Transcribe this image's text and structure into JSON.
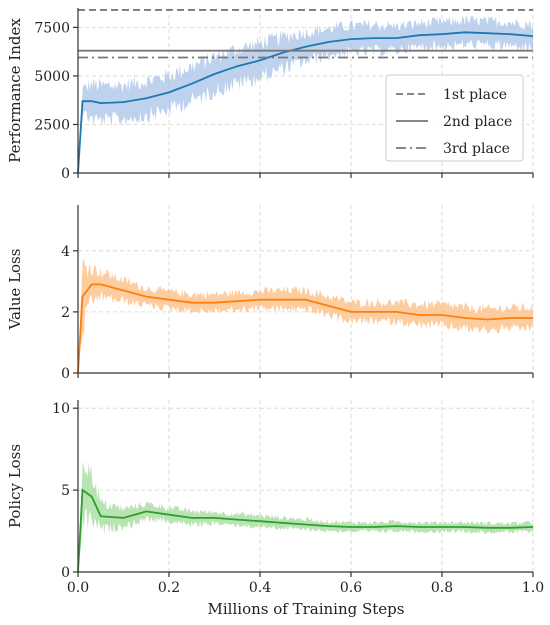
{
  "chart_data": {
    "type": "line",
    "x": [
      0.0,
      0.01,
      0.03,
      0.05,
      0.1,
      0.15,
      0.2,
      0.25,
      0.3,
      0.35,
      0.4,
      0.45,
      0.5,
      0.55,
      0.6,
      0.65,
      0.7,
      0.75,
      0.8,
      0.85,
      0.9,
      0.95,
      1.0
    ],
    "xlabel": "Millions of Training Steps",
    "xlim": [
      0.0,
      1.0
    ],
    "xticks": [
      "0.0",
      "0.2",
      "0.4",
      "0.6",
      "0.8",
      "1.0"
    ],
    "panels": [
      {
        "ylabel": "Performance Index",
        "ylim": [
          0,
          8500
        ],
        "yticks": [
          "0",
          "2500",
          "5000",
          "7500"
        ],
        "color": "#1f77b4",
        "band_color": "#aec7e8",
        "values": [
          0,
          3700,
          3700,
          3600,
          3650,
          3850,
          4150,
          4600,
          5100,
          5500,
          5800,
          6200,
          6500,
          6750,
          6900,
          6950,
          6950,
          7100,
          7150,
          7250,
          7200,
          7150,
          7050
        ],
        "band_halfwidth": [
          0,
          900,
          1300,
          1300,
          1300,
          1300,
          1300,
          1300,
          1300,
          1300,
          1300,
          1200,
          1100,
          1000,
          1000,
          1000,
          900,
          900,
          900,
          900,
          900,
          900,
          900
        ],
        "reference_lines": [
          {
            "name": "1st place",
            "value": 8400,
            "style": "dashed"
          },
          {
            "name": "2nd place",
            "value": 6300,
            "style": "solid"
          },
          {
            "name": "3rd place",
            "value": 5950,
            "style": "dashdot"
          }
        ],
        "legend_position": "right"
      },
      {
        "ylabel": "Value Loss",
        "ylim": [
          0,
          5.5
        ],
        "yticks": [
          "0",
          "2",
          "4"
        ],
        "color": "#ff7f0e",
        "band_color": "#fdbf87",
        "values": [
          0,
          2.5,
          2.9,
          2.9,
          2.7,
          2.5,
          2.4,
          2.3,
          2.3,
          2.35,
          2.4,
          2.4,
          2.4,
          2.2,
          2.0,
          2.0,
          2.0,
          1.9,
          1.9,
          1.8,
          1.75,
          1.8,
          1.8
        ],
        "band_halfwidth": [
          0,
          1.5,
          0.8,
          0.6,
          0.5,
          0.4,
          0.4,
          0.4,
          0.4,
          0.4,
          0.4,
          0.45,
          0.45,
          0.45,
          0.45,
          0.45,
          0.45,
          0.5,
          0.5,
          0.5,
          0.5,
          0.5,
          0.5
        ]
      },
      {
        "ylabel": "Policy Loss",
        "ylim": [
          0,
          10.5
        ],
        "yticks": [
          "0",
          "5",
          "10"
        ],
        "color": "#2ca02c",
        "band_color": "#a8dca0",
        "values": [
          0,
          5.0,
          4.6,
          3.4,
          3.3,
          3.7,
          3.5,
          3.3,
          3.3,
          3.2,
          3.1,
          3.0,
          2.9,
          2.8,
          2.75,
          2.75,
          2.8,
          2.75,
          2.75,
          2.75,
          2.7,
          2.7,
          2.75
        ],
        "band_halfwidth": [
          0,
          2.8,
          2.0,
          1.2,
          0.8,
          0.7,
          0.6,
          0.6,
          0.5,
          0.5,
          0.5,
          0.45,
          0.45,
          0.4,
          0.4,
          0.4,
          0.4,
          0.4,
          0.4,
          0.4,
          0.4,
          0.4,
          0.4
        ]
      }
    ]
  }
}
